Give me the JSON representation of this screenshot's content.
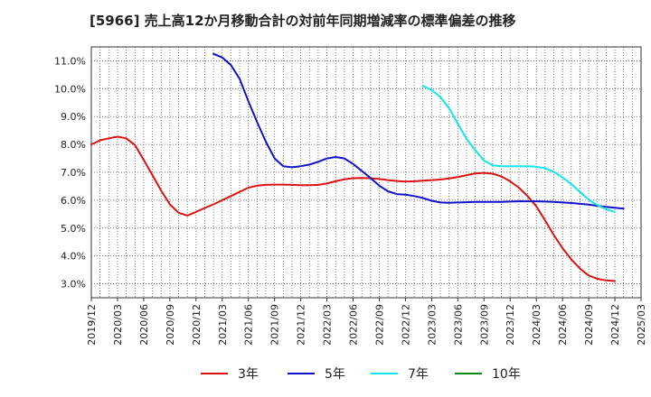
{
  "chart_data": {
    "type": "line",
    "title": "[5966]  売上高12か月移動合計の対前年同期増減率の標準偏差の推移",
    "xlabel": "",
    "ylabel": "",
    "ylim": [
      2.5,
      11.5
    ],
    "y_ticks": [
      "3.0%",
      "4.0%",
      "5.0%",
      "6.0%",
      "7.0%",
      "8.0%",
      "9.0%",
      "10.0%",
      "11.0%"
    ],
    "y_tick_values": [
      3,
      4,
      5,
      6,
      7,
      8,
      9,
      10,
      11
    ],
    "x_ticks": [
      "2019/12",
      "2020/03",
      "2020/06",
      "2020/09",
      "2020/12",
      "2021/03",
      "2021/06",
      "2021/09",
      "2021/12",
      "2022/03",
      "2022/06",
      "2022/09",
      "2022/12",
      "2023/03",
      "2023/06",
      "2023/09",
      "2023/12",
      "2024/03",
      "2024/06",
      "2024/09",
      "2024/12",
      "2025/03"
    ],
    "x_range_months": [
      0,
      63
    ],
    "grid": true,
    "legend_position": "bottom",
    "series": [
      {
        "name": "3年",
        "color": "#dd1111",
        "start_month": 0,
        "values": [
          8.0,
          8.15,
          8.22,
          8.28,
          8.22,
          7.98,
          7.45,
          6.9,
          6.35,
          5.85,
          5.55,
          5.45,
          5.58,
          5.72,
          5.85,
          6.0,
          6.15,
          6.3,
          6.45,
          6.52,
          6.55,
          6.56,
          6.56,
          6.55,
          6.54,
          6.54,
          6.55,
          6.6,
          6.68,
          6.75,
          6.79,
          6.8,
          6.79,
          6.76,
          6.72,
          6.69,
          6.67,
          6.68,
          6.7,
          6.72,
          6.74,
          6.78,
          6.83,
          6.9,
          6.96,
          6.98,
          6.95,
          6.85,
          6.68,
          6.45,
          6.15,
          5.78,
          5.28,
          4.75,
          4.28,
          3.88,
          3.55,
          3.3,
          3.18,
          3.12,
          3.1
        ]
      },
      {
        "name": "5年",
        "color": "#1111cc",
        "start_month": 14,
        "values": [
          11.25,
          11.12,
          10.85,
          10.35,
          9.55,
          8.8,
          8.1,
          7.5,
          7.22,
          7.18,
          7.22,
          7.28,
          7.38,
          7.5,
          7.55,
          7.5,
          7.3,
          7.05,
          6.8,
          6.52,
          6.32,
          6.22,
          6.2,
          6.15,
          6.08,
          5.98,
          5.92,
          5.91,
          5.92,
          5.93,
          5.94,
          5.94,
          5.94,
          5.94,
          5.95,
          5.96,
          5.96,
          5.96,
          5.95,
          5.94,
          5.92,
          5.9,
          5.87,
          5.84,
          5.8,
          5.76,
          5.73,
          5.7
        ]
      },
      {
        "name": "7年",
        "color": "#11e5ee",
        "start_month": 38,
        "values": [
          10.1,
          9.95,
          9.7,
          9.3,
          8.75,
          8.2,
          7.8,
          7.42,
          7.25,
          7.22,
          7.22,
          7.22,
          7.22,
          7.2,
          7.15,
          7.02,
          6.82,
          6.58,
          6.3,
          6.02,
          5.82,
          5.68,
          5.58
        ]
      },
      {
        "name": "10年",
        "color": "#118811",
        "start_month": 0,
        "values": []
      }
    ]
  }
}
